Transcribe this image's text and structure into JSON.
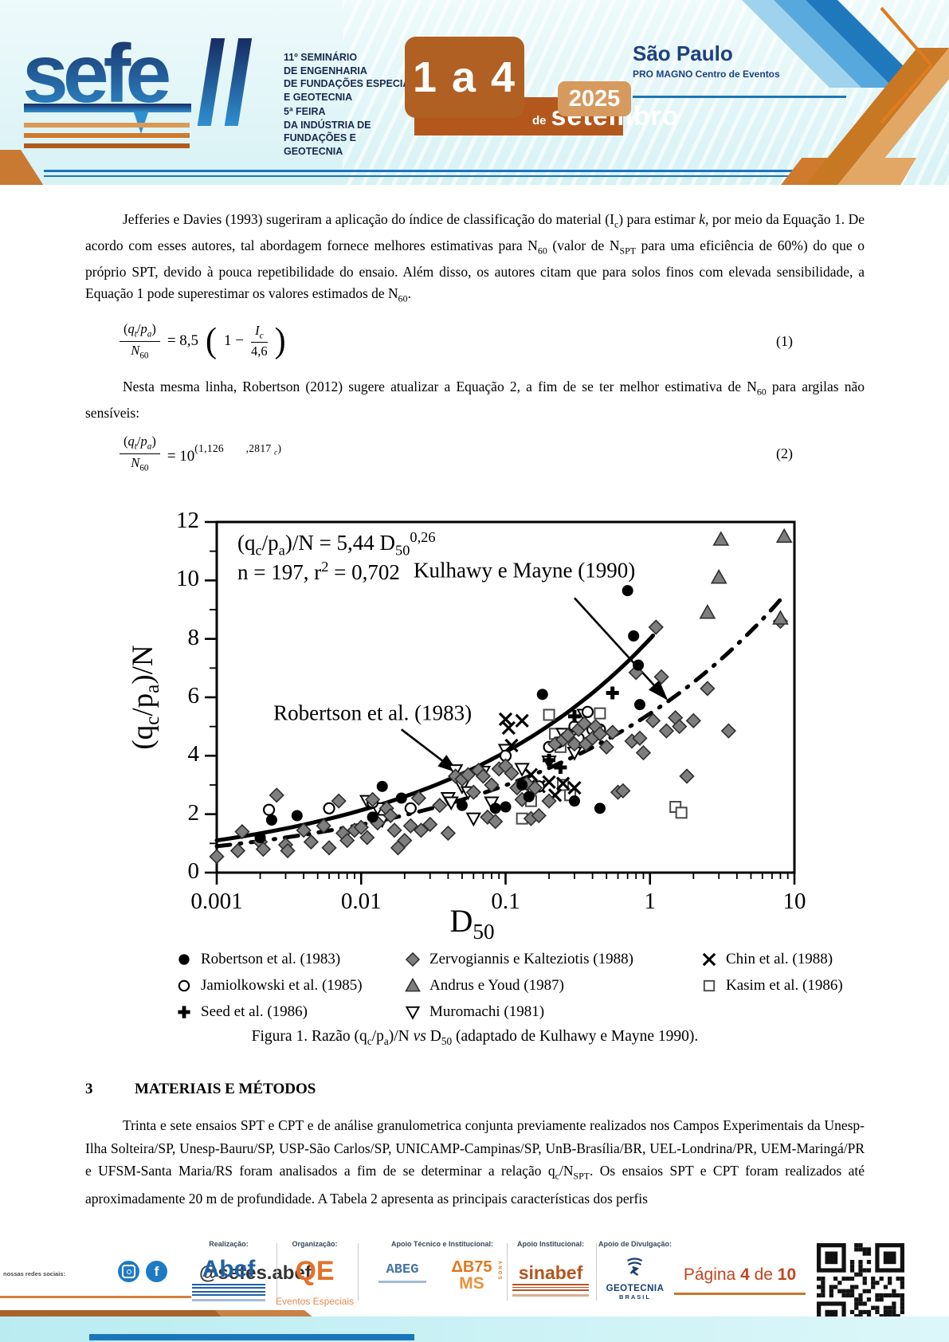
{
  "header": {
    "logo_text": "sefe",
    "logo_numeral": "11",
    "seminar_lines": [
      "11º SEMINÁRIO",
      "DE ENGENHARIA",
      "DE FUNDAÇÕES ESPECIAIS",
      "E GEOTECNIA"
    ],
    "fair_lines": [
      "5ª FEIRA",
      "DA INDÚSTRIA DE",
      "FUNDAÇÕES E",
      "GEOTECNIA"
    ],
    "date_big": "1 a 4",
    "date_prefix": "de",
    "date_month": "setembro",
    "date_year": "2025",
    "city": "São Paulo",
    "venue": "PRO MAGNO Centro de Eventos"
  },
  "body": {
    "paragraph1_rich": "Jefferies e Davies (1993) sugeriram a aplicação do índice de classificação do material (I<sub>c</sub>) para estimar <i>k,</i> por meio da Equação 1. De acordo com esses autores, tal abordagem fornece melhores estimativas para N<sub>60</sub> (valor de N<sub>SPT</sub> para uma eficiência de 60%) do que o próprio SPT, devido à pouca repetibilidade do ensaio. Além disso, os autores citam que para solos finos com elevada sensibilidade, a Equação 1 pode superestimar os valores estimados de N<sub>60</sub>.",
    "paragraph2_rich": "Nesta mesma linha, Robertson (2012) sugere atualizar a Equação 2, a fim de se ter melhor estimativa de N<sub>60</sub> para argilas não sensíveis:",
    "paragraph3_rich": "Trinta e sete ensaios SPT e CPT e de análise granulometrica conjunta previamente realizados nos Campos Experimentais da Unesp-Ilha Solteira/SP, Unesp-Bauru/SP, USP-São Carlos/SP, UNICAMP-Campinas/SP, UnB-Brasília/BR, UEL-Londrina/PR, UEM-Maringá/PR e UFSM-Santa Maria/RS foram analisados a fim de se determinar a relação q<sub>c</sub>/N<sub>SPT</sub>. Os ensaios SPT e CPT foram realizados até aproximadamente 20 m de profundidade. A Tabela 2 apresenta as principais características dos perfis"
  },
  "equations": {
    "eq1": {
      "lhs_num_rich": "(<i>q<sub>t</sub></i>/<i>p<sub>a</sub></i>)",
      "lhs_den_rich": "<i>N</i><sub>60</sub>",
      "rhs_pre": "= 8,5",
      "inner_pre": "1 −",
      "inner_num_rich": "<i>I<sub>c</sub></i>",
      "inner_den": "4,6",
      "number": "(1)"
    },
    "eq2": {
      "lhs_num_rich": "(<i>q<sub>t</sub></i>/<i>p<sub>a</sub></i>)",
      "lhs_den_rich": "<i>N</i><sub>60</sub>",
      "rhs_pre": "= 10",
      "exponent_rich": "(1,126&emsp;&emsp;,2817 <sub><i>c</i></sub>)",
      "number": "(2)"
    }
  },
  "chart_data": {
    "type": "scatter",
    "xscale": "log",
    "xlim": [
      0.001,
      10
    ],
    "ylim": [
      0,
      12
    ],
    "xticks": [
      0.001,
      0.01,
      0.1,
      1,
      10
    ],
    "xtick_labels": [
      "0.001",
      "0.01",
      "0.1",
      "1",
      "10"
    ],
    "yticks": [
      0,
      2,
      4,
      6,
      8,
      10,
      12
    ],
    "grid": false,
    "xlabel_rich": "D<sub>50</sub>",
    "ylabel_rich": "(q<sub>c</sub>/p<sub>a</sub>)/N",
    "annotation": {
      "line1_rich": "(q<sub>c</sub>/p<sub>a</sub>)/N = 5,44 D<sub>50</sub><sup>0,26</sup>",
      "line2_rich": "n = 197, r<sup>2</sup> = 0,702"
    },
    "fit": {
      "equation": "(qc/pa)/N = 5,44 D50^0,26",
      "n": 197,
      "r2": 0.702
    },
    "curves": [
      {
        "name": "Robertson et al. (1983)",
        "style": "solid",
        "coef": 8.0,
        "exp": 0.287,
        "domain": [
          0.001,
          1.05
        ],
        "label": {
          "text": "Robertson et al. (1983)",
          "x": 0.012,
          "y": 5.45
        },
        "arrow": {
          "x1": 0.019,
          "y1": 4.9,
          "x2": 0.046,
          "y2": 3.45
        }
      },
      {
        "name": "Kulhawy e Mayne (1990)",
        "style": "dashdot",
        "coef": 5.44,
        "exp": 0.26,
        "domain": [
          0.001,
          8.5
        ],
        "label": {
          "text": "Kulhawy e Mayne (1990)",
          "x": 0.135,
          "y": 10.35
        },
        "arrow": {
          "x1": 0.3,
          "y1": 9.4,
          "x2": 1.3,
          "y2": 5.95
        }
      }
    ],
    "series": [
      {
        "name": "Robertson et al. (1983)",
        "marker": "circle-filled",
        "points": [
          [
            0.002,
            1.2
          ],
          [
            0.0024,
            1.8
          ],
          [
            0.0036,
            1.95
          ],
          [
            0.012,
            1.9
          ],
          [
            0.014,
            2.95
          ],
          [
            0.019,
            2.55
          ],
          [
            0.05,
            2.3
          ],
          [
            0.085,
            2.2
          ],
          [
            0.1,
            2.25
          ],
          [
            0.13,
            3.0
          ],
          [
            0.145,
            2.6
          ],
          [
            0.18,
            6.1
          ],
          [
            0.3,
            2.45
          ],
          [
            0.45,
            2.2
          ],
          [
            0.7,
            9.65
          ],
          [
            0.77,
            8.1
          ],
          [
            0.83,
            7.1
          ],
          [
            0.85,
            5.75
          ]
        ]
      },
      {
        "name": "Jamiolkowski et al. (1985)",
        "marker": "circle-open",
        "points": [
          [
            0.0023,
            2.15
          ],
          [
            0.006,
            2.2
          ],
          [
            0.012,
            2.4
          ],
          [
            0.022,
            2.2
          ],
          [
            0.1,
            4.0
          ],
          [
            0.17,
            2.95
          ],
          [
            0.2,
            4.3
          ],
          [
            0.23,
            4.45
          ],
          [
            0.3,
            5.0
          ],
          [
            0.32,
            4.6
          ],
          [
            0.37,
            5.5
          ],
          [
            0.4,
            4.9
          ],
          [
            0.45,
            4.9
          ]
        ]
      },
      {
        "name": "Seed et al. (1986)",
        "marker": "plus",
        "points": [
          [
            0.2,
            3.85
          ],
          [
            0.24,
            3.6
          ],
          [
            0.3,
            5.35
          ],
          [
            0.55,
            6.15
          ]
        ]
      },
      {
        "name": "Zervogiannis e Kalteziotis (1988)",
        "marker": "diamond-filled",
        "points": [
          [
            0.001,
            0.55
          ],
          [
            0.0014,
            0.75
          ],
          [
            0.0015,
            1.4
          ],
          [
            0.002,
            1.05
          ],
          [
            0.0021,
            0.8
          ],
          [
            0.0026,
            2.65
          ],
          [
            0.003,
            0.95
          ],
          [
            0.0031,
            0.75
          ],
          [
            0.004,
            1.45
          ],
          [
            0.0045,
            1.05
          ],
          [
            0.0055,
            1.6
          ],
          [
            0.006,
            0.85
          ],
          [
            0.007,
            2.45
          ],
          [
            0.0075,
            1.35
          ],
          [
            0.008,
            1.1
          ],
          [
            0.009,
            1.45
          ],
          [
            0.01,
            1.55
          ],
          [
            0.011,
            1.2
          ],
          [
            0.012,
            2.5
          ],
          [
            0.013,
            1.7
          ],
          [
            0.015,
            2.2
          ],
          [
            0.016,
            1.95
          ],
          [
            0.017,
            1.45
          ],
          [
            0.018,
            0.85
          ],
          [
            0.02,
            1.1
          ],
          [
            0.022,
            1.6
          ],
          [
            0.025,
            2.55
          ],
          [
            0.026,
            1.45
          ],
          [
            0.03,
            1.65
          ],
          [
            0.035,
            2.3
          ],
          [
            0.04,
            1.35
          ],
          [
            0.045,
            3.3
          ],
          [
            0.05,
            3.2
          ],
          [
            0.055,
            3.35
          ],
          [
            0.06,
            2.75
          ],
          [
            0.065,
            3.5
          ],
          [
            0.07,
            3.3
          ],
          [
            0.075,
            1.9
          ],
          [
            0.08,
            3.0
          ],
          [
            0.085,
            1.75
          ],
          [
            0.09,
            3.55
          ],
          [
            0.1,
            3.65
          ],
          [
            0.11,
            3.4
          ],
          [
            0.12,
            2.9
          ],
          [
            0.13,
            2.5
          ],
          [
            0.14,
            3.05
          ],
          [
            0.15,
            1.85
          ],
          [
            0.16,
            2.9
          ],
          [
            0.17,
            1.95
          ],
          [
            0.2,
            2.45
          ],
          [
            0.22,
            4.4
          ],
          [
            0.25,
            4.55
          ],
          [
            0.27,
            4.7
          ],
          [
            0.3,
            4.4
          ],
          [
            0.32,
            4.9
          ],
          [
            0.35,
            5.1
          ],
          [
            0.36,
            4.4
          ],
          [
            0.4,
            4.6
          ],
          [
            0.42,
            5.0
          ],
          [
            0.45,
            4.75
          ],
          [
            0.5,
            4.3
          ],
          [
            0.55,
            4.8
          ],
          [
            0.6,
            2.75
          ],
          [
            0.65,
            2.8
          ],
          [
            0.75,
            4.5
          ],
          [
            0.8,
            6.85
          ],
          [
            0.85,
            4.6
          ],
          [
            0.9,
            4.1
          ],
          [
            1.05,
            5.2
          ],
          [
            1.1,
            8.4
          ],
          [
            1.2,
            6.7
          ],
          [
            1.3,
            4.85
          ],
          [
            1.5,
            5.3
          ],
          [
            1.6,
            5.0
          ],
          [
            1.8,
            3.3
          ],
          [
            2.0,
            5.2
          ],
          [
            2.5,
            6.3
          ],
          [
            3.5,
            4.85
          ],
          [
            8.0,
            8.6
          ]
        ]
      },
      {
        "name": "Andrus e Youd (1987)",
        "marker": "triangle-filled",
        "points": [
          [
            2.5,
            8.9
          ],
          [
            3.0,
            10.1
          ],
          [
            3.1,
            11.4
          ],
          [
            8.5,
            11.5
          ],
          [
            8.0,
            8.7
          ]
        ]
      },
      {
        "name": "Muromachi (1981)",
        "marker": "triangle-down-open",
        "points": [
          [
            0.011,
            2.45
          ],
          [
            0.013,
            2.2
          ],
          [
            0.014,
            1.8
          ],
          [
            0.04,
            2.55
          ],
          [
            0.042,
            2.4
          ],
          [
            0.045,
            3.5
          ],
          [
            0.05,
            2.95
          ],
          [
            0.055,
            2.75
          ],
          [
            0.06,
            1.85
          ],
          [
            0.07,
            3.45
          ],
          [
            0.08,
            2.4
          ],
          [
            0.1,
            4.2
          ],
          [
            0.13,
            3.55
          ],
          [
            0.15,
            2.85
          ],
          [
            0.2,
            3.8
          ],
          [
            0.25,
            4.75
          ],
          [
            0.3,
            4.1
          ],
          [
            0.35,
            5.4
          ]
        ]
      },
      {
        "name": "Chin et al. (1988)",
        "marker": "x",
        "points": [
          [
            0.1,
            5.25
          ],
          [
            0.105,
            4.95
          ],
          [
            0.11,
            4.35
          ],
          [
            0.13,
            5.2
          ],
          [
            0.15,
            3.35
          ],
          [
            0.17,
            2.95
          ],
          [
            0.2,
            3.1
          ],
          [
            0.22,
            2.65
          ],
          [
            0.25,
            3.05
          ],
          [
            0.3,
            2.9
          ]
        ]
      },
      {
        "name": "Kasim et al. (1986)",
        "marker": "square-open",
        "points": [
          [
            0.13,
            1.85
          ],
          [
            0.15,
            2.45
          ],
          [
            0.2,
            5.4
          ],
          [
            0.22,
            4.75
          ],
          [
            0.24,
            4.3
          ],
          [
            0.25,
            3.0
          ],
          [
            0.28,
            2.65
          ],
          [
            0.45,
            5.45
          ],
          [
            1.5,
            2.25
          ],
          [
            1.65,
            2.05
          ]
        ]
      }
    ],
    "legend": {
      "position": "below",
      "columns": 3
    }
  },
  "figure": {
    "caption_rich": "Figura 1. Razão (q<sub>c</sub>/p<sub>a</sub>)/N <i>vs</i> D<sub>50</sub> (adaptado de Kulhawy e Mayne 1990)."
  },
  "section3": {
    "number": "3",
    "title": "MATERIAIS E MÉTODOS"
  },
  "footer": {
    "social_prefix": "nossas redes sociais:",
    "social_handle": "@sefes.abef",
    "labels": {
      "realizacao": "Realização:",
      "organizacao": "Organização:",
      "apoio_tecnico": "Apoio Técnico e Institucional:",
      "apoio_institucional": "Apoio Institucional:",
      "apoio_divulgacao": "Apoio de Divulgação:"
    },
    "logos": {
      "abef": "Abef",
      "qe": "QE",
      "qe_sub": "Eventos Especiais",
      "abeg": "ABEG",
      "ab75_1": "ΔB75",
      "ab75_2": "MS",
      "ab75_anos": "ANOS",
      "sinabef": "sinabef",
      "geo": "GEOTECNIA",
      "geo_sub": "BRASIL"
    },
    "page_label_prefix": "Página ",
    "page_current": "4",
    "page_of": " de ",
    "page_total": "10"
  }
}
